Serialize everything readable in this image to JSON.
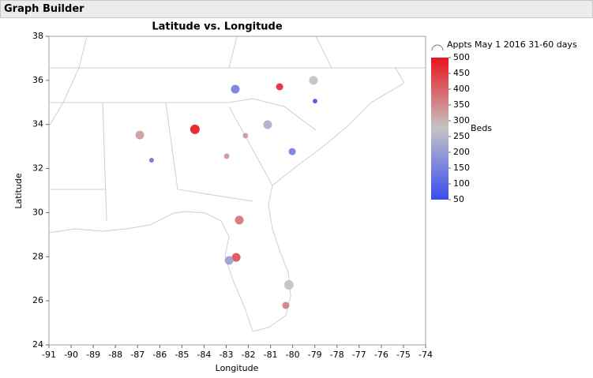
{
  "header": {
    "title": "Graph Builder"
  },
  "chart_data": {
    "type": "scatter",
    "title": "Latitude vs. Longitude",
    "x_label": "Longitude",
    "y_label": "Latitude",
    "xlim": [
      -91,
      -74
    ],
    "xticks": [
      -91,
      -90,
      -89,
      -88,
      -87,
      -86,
      -85,
      -84,
      -83,
      -82,
      -81,
      -80,
      -79,
      -78,
      -77,
      -76,
      -75,
      -74
    ],
    "ylim": [
      24,
      38
    ],
    "yticks": [
      24,
      26,
      28,
      30,
      32,
      34,
      36,
      38
    ],
    "x": [
      -82.59,
      -80.59,
      -79.06,
      -78.99,
      -84.41,
      -81.13,
      -82.13,
      -86.9,
      -86.37,
      -82.98,
      -80.02,
      -82.41,
      -82.55,
      -82.87,
      -80.17,
      -80.31
    ],
    "values": [
      35.6,
      35.71,
      36.0,
      35.06,
      33.78,
      33.99,
      33.49,
      33.52,
      32.38,
      32.56,
      32.77,
      29.66,
      27.97,
      27.83,
      26.72,
      25.79
    ],
    "sizes": [
      5.5,
      4.5,
      5.5,
      3,
      6,
      5.5,
      3.5,
      5.5,
      3,
      3.5,
      4.5,
      5.5,
      5.5,
      5.5,
      6,
      4.5
    ],
    "beds": [
      140,
      480,
      280,
      60,
      500,
      230,
      330,
      330,
      120,
      340,
      140,
      380,
      430,
      200,
      270,
      370
    ],
    "size_legend": "Appts May 1 2016 31-60 days",
    "color_legend": {
      "title": "Beds",
      "lim": [
        50,
        500
      ],
      "ticks": [
        50,
        100,
        150,
        200,
        250,
        300,
        350,
        400,
        450,
        500
      ],
      "colors": [
        "#3a4cf0",
        "#c4c4c4",
        "#e8141c"
      ]
    }
  }
}
